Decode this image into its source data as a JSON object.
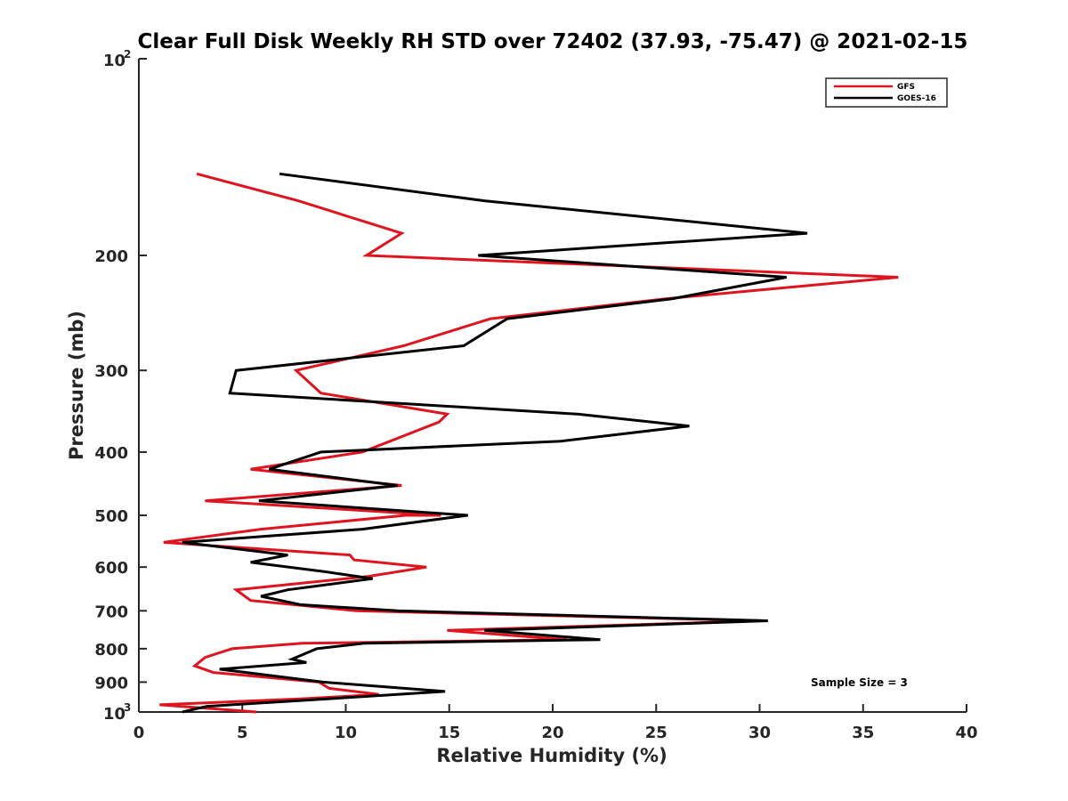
{
  "chart_data": {
    "type": "line",
    "title": "Clear Full Disk Weekly RH STD over 72402 (37.93, -75.47) @ 2021-02-15",
    "xlabel": "Relative Humidity (%)",
    "ylabel": "Pressure (mb)",
    "xlim": [
      0,
      40
    ],
    "ylim": [
      100,
      1000
    ],
    "y_scale": "log",
    "y_reversed": true,
    "x_ticks": [
      0,
      5,
      10,
      15,
      20,
      25,
      30,
      35,
      40
    ],
    "y_ticks": [
      {
        "value": 100,
        "label": "10",
        "exponent": "2"
      },
      {
        "value": 200,
        "label": "200"
      },
      {
        "value": 300,
        "label": "300"
      },
      {
        "value": 400,
        "label": "400"
      },
      {
        "value": 500,
        "label": "500"
      },
      {
        "value": 600,
        "label": "600"
      },
      {
        "value": 700,
        "label": "700"
      },
      {
        "value": 800,
        "label": "800"
      },
      {
        "value": 900,
        "label": "900"
      },
      {
        "value": 1000,
        "label": "10",
        "exponent": "3"
      }
    ],
    "series": [
      {
        "name": "GFS",
        "color": "#e0141e",
        "points": [
          [
            2.8,
            150
          ],
          [
            7.7,
            165
          ],
          [
            12.7,
            185
          ],
          [
            11.0,
            200
          ],
          [
            36.7,
            216
          ],
          [
            25.5,
            233
          ],
          [
            17.0,
            250
          ],
          [
            12.8,
            275
          ],
          [
            7.6,
            300
          ],
          [
            8.8,
            325
          ],
          [
            14.9,
            350
          ],
          [
            14.5,
            360
          ],
          [
            10.8,
            400
          ],
          [
            5.4,
            425
          ],
          [
            12.7,
            450
          ],
          [
            3.2,
            475
          ],
          [
            14.6,
            500
          ],
          [
            12.9,
            500
          ],
          [
            5.9,
            525
          ],
          [
            1.2,
            550
          ],
          [
            10.2,
            575
          ],
          [
            10.4,
            585
          ],
          [
            13.9,
            600
          ],
          [
            11.1,
            620
          ],
          [
            4.7,
            650
          ],
          [
            5.4,
            675
          ],
          [
            10.5,
            700
          ],
          [
            30.1,
            725
          ],
          [
            14.9,
            750
          ],
          [
            20.7,
            775
          ],
          [
            7.9,
            785
          ],
          [
            4.5,
            800
          ],
          [
            3.2,
            825
          ],
          [
            2.7,
            850
          ],
          [
            3.6,
            870
          ],
          [
            8.7,
            900
          ],
          [
            9.2,
            920
          ],
          [
            11.6,
            940
          ],
          [
            7.8,
            955
          ],
          [
            1.0,
            975
          ],
          [
            5.7,
            1000
          ]
        ]
      },
      {
        "name": "GOES-16",
        "color": "#000000",
        "points": [
          [
            6.8,
            150
          ],
          [
            16.7,
            165
          ],
          [
            32.3,
            185
          ],
          [
            16.4,
            200
          ],
          [
            31.3,
            216
          ],
          [
            25.8,
            233
          ],
          [
            17.8,
            250
          ],
          [
            15.7,
            275
          ],
          [
            4.7,
            300
          ],
          [
            4.4,
            325
          ],
          [
            21.2,
            350
          ],
          [
            26.6,
            365
          ],
          [
            20.4,
            385
          ],
          [
            8.8,
            400
          ],
          [
            6.3,
            425
          ],
          [
            12.5,
            450
          ],
          [
            5.8,
            475
          ],
          [
            15.9,
            500
          ],
          [
            10.8,
            525
          ],
          [
            2.1,
            550
          ],
          [
            7.2,
            575
          ],
          [
            5.4,
            590
          ],
          [
            9.0,
            610
          ],
          [
            11.3,
            625
          ],
          [
            7.2,
            650
          ],
          [
            5.9,
            665
          ],
          [
            7.8,
            685
          ],
          [
            12.5,
            700
          ],
          [
            30.4,
            725
          ],
          [
            16.7,
            750
          ],
          [
            22.3,
            775
          ],
          [
            10.9,
            785
          ],
          [
            8.6,
            800
          ],
          [
            7.4,
            830
          ],
          [
            8.1,
            840
          ],
          [
            3.9,
            860
          ],
          [
            8.9,
            900
          ],
          [
            14.8,
            930
          ],
          [
            7.9,
            960
          ],
          [
            3.3,
            980
          ],
          [
            2.1,
            1000
          ]
        ]
      }
    ],
    "legend": {
      "location": "top-right",
      "entries": [
        "GFS",
        "GOES-16"
      ]
    },
    "annotations": [
      {
        "text": "Sample Size = 3",
        "location": "lower-right"
      }
    ],
    "grid": false
  }
}
